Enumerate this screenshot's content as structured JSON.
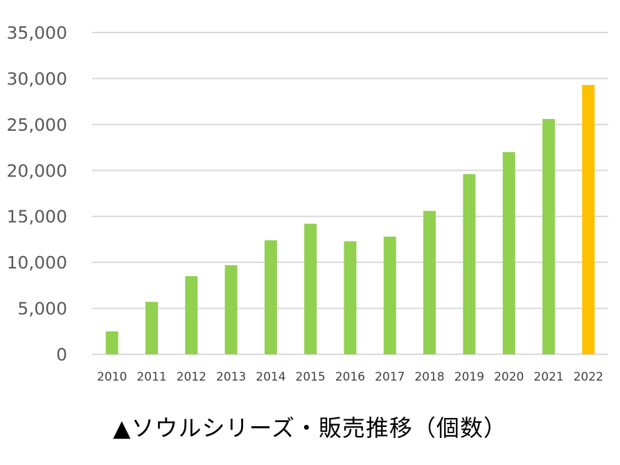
{
  "chart_data": {
    "type": "bar",
    "categories": [
      "2010",
      "2011",
      "2012",
      "2013",
      "2014",
      "2015",
      "2016",
      "2017",
      "2018",
      "2019",
      "2020",
      "2021",
      "2022"
    ],
    "values": [
      2500,
      5700,
      8500,
      9700,
      12400,
      14200,
      12300,
      12800,
      15600,
      19600,
      22000,
      25600,
      29300
    ],
    "ylim": [
      0,
      35000
    ],
    "yticks": [
      "0",
      "5,000",
      "10,000",
      "15,000",
      "20,000",
      "25,000",
      "30,000",
      "35,000"
    ],
    "grid": true,
    "bar_color": "#92D050",
    "highlight_color": "#FFC000",
    "highlight_category": "2022"
  },
  "caption": "▲ソウルシリーズ・販売推移（個数）"
}
